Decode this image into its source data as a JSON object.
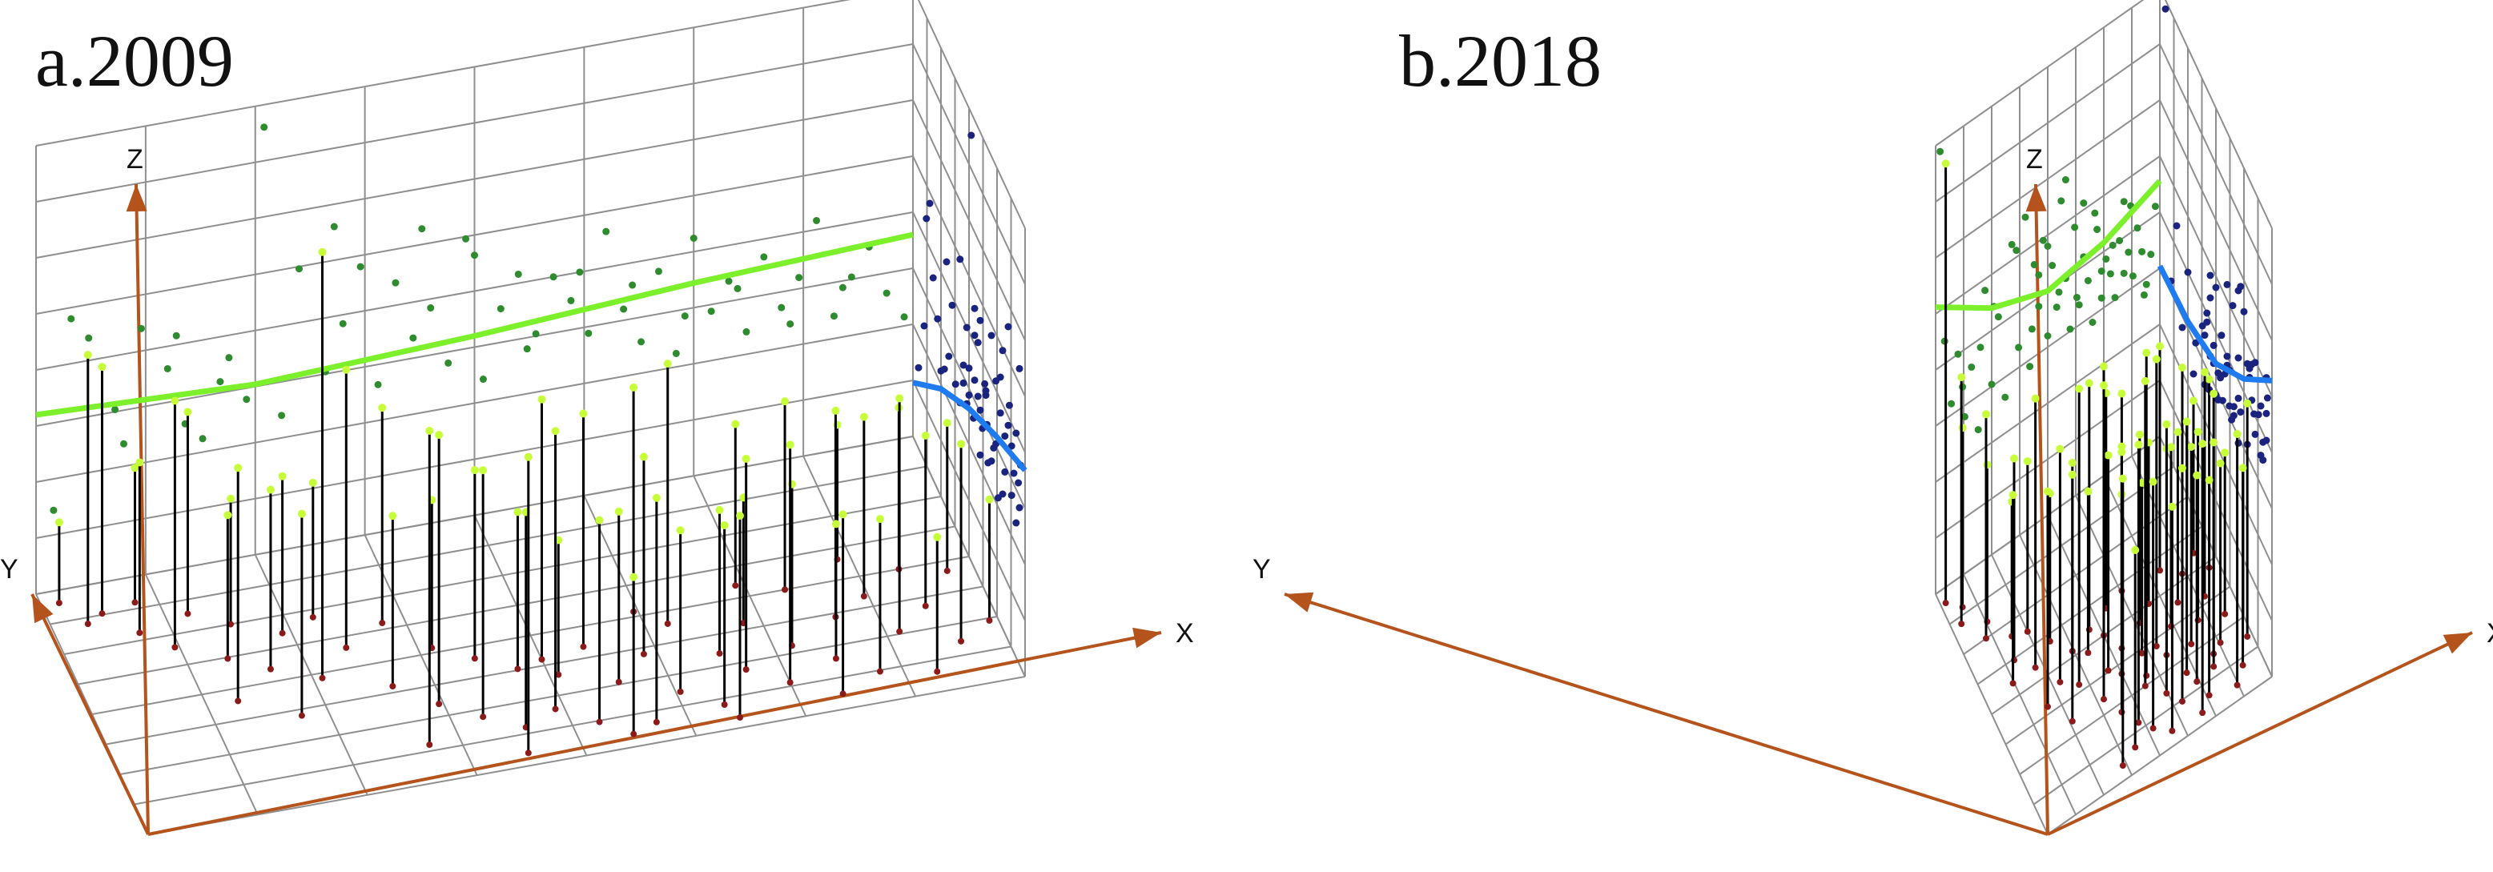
{
  "colors": {
    "grid": "#8f8f8f",
    "axis": "#b5531c",
    "stem": "#000000",
    "stem_base": "#8b1a1a",
    "tip": "#c6ff3a",
    "xz_projection_points": "#2e8b2e",
    "yz_projection_points": "#1a237e",
    "xz_trend": "#7cf02a",
    "yz_trend": "#1e7bf0"
  },
  "chart_data": [
    {
      "type": "scatter3d",
      "title": "a.2009",
      "axes": {
        "x": "X",
        "y": "Y",
        "z": "Z"
      },
      "ticks_shown": false,
      "grid": true,
      "xz_trend": [
        [
          0,
          0.4
        ],
        [
          0.25,
          0.38
        ],
        [
          0.5,
          0.4
        ],
        [
          0.75,
          0.43
        ],
        [
          1,
          0.45
        ]
      ],
      "yz_trend": [
        [
          0,
          0.46
        ],
        [
          0.25,
          0.4
        ],
        [
          0.5,
          0.33
        ],
        [
          0.75,
          0.24
        ],
        [
          1,
          0.12
        ]
      ],
      "points": [
        [
          0.02,
          0.95,
          0.18
        ],
        [
          0.04,
          0.85,
          0.6
        ],
        [
          0.06,
          0.88,
          0.55
        ],
        [
          0.09,
          0.78,
          0.38
        ],
        [
          0.1,
          0.9,
          0.3
        ],
        [
          0.12,
          0.7,
          0.55
        ],
        [
          0.15,
          0.82,
          0.45
        ],
        [
          0.17,
          0.62,
          0.32
        ],
        [
          0.19,
          0.75,
          0.28
        ],
        [
          0.21,
          0.55,
          0.4
        ],
        [
          0.24,
          0.68,
          0.35
        ],
        [
          0.26,
          0.48,
          0.95
        ],
        [
          0.28,
          0.72,
          0.3
        ],
        [
          0.3,
          0.58,
          0.62
        ],
        [
          0.33,
          0.4,
          0.38
        ],
        [
          0.35,
          0.65,
          0.48
        ],
        [
          0.37,
          0.3,
          0.6
        ],
        [
          0.39,
          0.52,
          0.33
        ],
        [
          0.41,
          0.22,
          0.55
        ],
        [
          0.43,
          0.45,
          0.42
        ],
        [
          0.45,
          0.15,
          0.48
        ],
        [
          0.47,
          0.38,
          0.35
        ],
        [
          0.49,
          0.2,
          0.62
        ],
        [
          0.51,
          0.33,
          0.3
        ],
        [
          0.53,
          0.12,
          0.45
        ],
        [
          0.55,
          0.42,
          0.52
        ],
        [
          0.57,
          0.26,
          0.38
        ],
        [
          0.59,
          0.08,
          0.5
        ],
        [
          0.61,
          0.35,
          0.44
        ],
        [
          0.63,
          0.18,
          0.36
        ],
        [
          0.65,
          0.45,
          0.58
        ],
        [
          0.67,
          0.1,
          0.4
        ],
        [
          0.69,
          0.3,
          0.32
        ],
        [
          0.71,
          0.22,
          0.47
        ],
        [
          0.73,
          0.4,
          0.28
        ],
        [
          0.75,
          0.14,
          0.53
        ],
        [
          0.77,
          0.28,
          0.36
        ],
        [
          0.79,
          0.5,
          0.42
        ],
        [
          0.81,
          0.2,
          0.3
        ],
        [
          0.83,
          0.36,
          0.46
        ],
        [
          0.85,
          0.12,
          0.34
        ],
        [
          0.87,
          0.42,
          0.4
        ],
        [
          0.89,
          0.26,
          0.52
        ],
        [
          0.91,
          0.08,
          0.3
        ],
        [
          0.93,
          0.34,
          0.38
        ],
        [
          0.95,
          0.18,
          0.44
        ],
        [
          0.97,
          0.46,
          0.33
        ],
        [
          0.99,
          0.24,
          0.27
        ],
        [
          0.34,
          0.15,
          0.7
        ],
        [
          0.44,
          0.05,
          0.66
        ],
        [
          0.5,
          0.4,
          0.58
        ],
        [
          0.56,
          0.05,
          0.35
        ],
        [
          0.62,
          0.52,
          0.5
        ],
        [
          0.68,
          0.04,
          0.45
        ],
        [
          0.74,
          0.55,
          0.36
        ],
        [
          0.8,
          0.06,
          0.4
        ],
        [
          0.86,
          0.58,
          0.3
        ],
        [
          0.92,
          0.5,
          0.36
        ],
        [
          0.22,
          0.35,
          0.45
        ],
        [
          0.16,
          0.45,
          0.52
        ]
      ]
    },
    {
      "type": "scatter3d",
      "title": "b.2018",
      "axes": {
        "x": "X",
        "y": "Y",
        "z": "Z"
      },
      "ticks_shown": false,
      "grid": true,
      "xz_trend": [
        [
          0,
          0.64
        ],
        [
          0.25,
          0.55
        ],
        [
          0.5,
          0.5
        ],
        [
          0.75,
          0.52
        ],
        [
          1,
          0.57
        ]
      ],
      "yz_trend": [
        [
          0,
          0.66
        ],
        [
          0.25,
          0.53
        ],
        [
          0.5,
          0.43
        ],
        [
          0.75,
          0.39
        ],
        [
          1,
          0.38
        ]
      ],
      "points": [
        [
          0.02,
          0.95,
          0.98
        ],
        [
          0.04,
          0.85,
          0.55
        ],
        [
          0.07,
          0.9,
          0.4
        ],
        [
          0.1,
          0.75,
          0.5
        ],
        [
          0.13,
          0.8,
          0.35
        ],
        [
          0.16,
          0.62,
          0.45
        ],
        [
          0.19,
          0.7,
          0.3
        ],
        [
          0.22,
          0.55,
          0.6
        ],
        [
          0.25,
          0.68,
          0.38
        ],
        [
          0.28,
          0.45,
          0.52
        ],
        [
          0.31,
          0.6,
          0.33
        ],
        [
          0.34,
          0.4,
          0.66
        ],
        [
          0.37,
          0.52,
          0.42
        ],
        [
          0.4,
          0.3,
          0.7
        ],
        [
          0.42,
          0.48,
          0.36
        ],
        [
          0.44,
          0.22,
          0.58
        ],
        [
          0.46,
          0.38,
          0.48
        ],
        [
          0.48,
          0.15,
          0.62
        ],
        [
          0.5,
          0.34,
          0.4
        ],
        [
          0.52,
          0.1,
          0.55
        ],
        [
          0.54,
          0.42,
          0.45
        ],
        [
          0.56,
          0.25,
          0.68
        ],
        [
          0.58,
          0.05,
          0.5
        ],
        [
          0.6,
          0.36,
          0.38
        ],
        [
          0.62,
          0.18,
          0.6
        ],
        [
          0.64,
          0.46,
          0.42
        ],
        [
          0.66,
          0.12,
          0.52
        ],
        [
          0.68,
          0.3,
          0.46
        ],
        [
          0.7,
          0.5,
          0.36
        ],
        [
          0.72,
          0.2,
          0.56
        ],
        [
          0.74,
          0.38,
          0.4
        ],
        [
          0.76,
          0.08,
          0.48
        ],
        [
          0.78,
          0.28,
          0.44
        ],
        [
          0.8,
          0.44,
          0.38
        ],
        [
          0.82,
          0.16,
          0.5
        ],
        [
          0.84,
          0.34,
          0.42
        ],
        [
          0.86,
          0.52,
          0.46
        ],
        [
          0.88,
          0.22,
          0.4
        ],
        [
          0.9,
          0.4,
          0.5
        ],
        [
          0.92,
          0.1,
          0.44
        ],
        [
          0.94,
          0.3,
          0.36
        ],
        [
          0.96,
          0.48,
          0.42
        ],
        [
          0.98,
          0.18,
          0.52
        ],
        [
          0.36,
          0.05,
          0.64
        ],
        [
          0.46,
          0.55,
          0.55
        ],
        [
          0.55,
          0.58,
          0.48
        ],
        [
          0.63,
          0.6,
          0.44
        ],
        [
          0.71,
          0.04,
          0.6
        ],
        [
          0.79,
          0.58,
          0.5
        ],
        [
          0.87,
          0.05,
          0.56
        ],
        [
          0.93,
          0.56,
          0.34
        ],
        [
          0.2,
          0.4,
          0.48
        ],
        [
          0.12,
          0.55,
          0.42
        ],
        [
          0.26,
          0.3,
          0.55
        ],
        [
          0.5,
          0.5,
          0.6
        ],
        [
          0.66,
          0.35,
          0.64
        ],
        [
          0.74,
          0.15,
          0.46
        ],
        [
          0.84,
          0.2,
          0.58
        ],
        [
          0.58,
          0.28,
          0.72
        ],
        [
          0.43,
          0.08,
          0.44
        ]
      ]
    }
  ]
}
